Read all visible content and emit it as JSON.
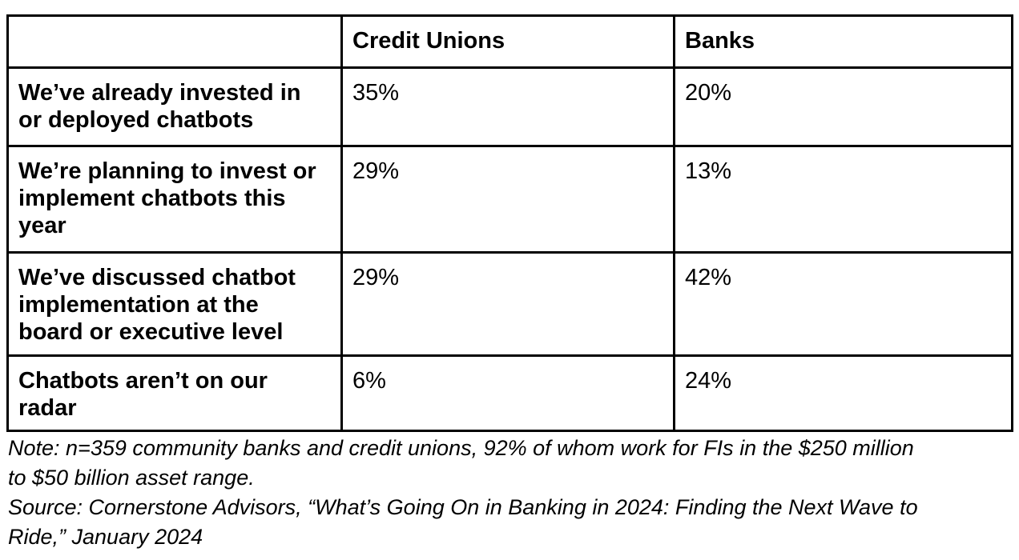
{
  "table": {
    "header": {
      "label": "",
      "credit_unions": "Credit Unions",
      "banks": "Banks"
    },
    "rows": [
      {
        "label": "We’ve already invested in\nor deployed chatbots",
        "credit_unions": "35%",
        "banks": "20%"
      },
      {
        "label": "We’re planning to invest or\nimplement chatbots this\nyear",
        "credit_unions": "29%",
        "banks": "13%"
      },
      {
        "label": "We’ve discussed chatbot\nimplementation at the\nboard or executive level",
        "credit_unions": "29%",
        "banks": "42%"
      },
      {
        "label": "Chatbots aren’t on our\nradar",
        "credit_unions": "6%",
        "banks": "24%"
      }
    ]
  },
  "notes": {
    "note": "Note: n=359 community banks and credit unions, 92% of whom work for FIs in the $250 million\nto $50 billion asset range.",
    "source": "Source: Cornerstone Advisors, “What’s Going On in Banking in 2024: Finding the Next Wave to\nRide,” January 2024"
  },
  "colors": {
    "text": "#000000",
    "border": "#000000",
    "background": "#ffffff"
  },
  "chart_data": {
    "type": "table",
    "title": "",
    "categories": [
      "We’ve already invested in or deployed chatbots",
      "We’re planning to invest or implement chatbots this year",
      "We’ve discussed chatbot implementation at the board or executive level",
      "Chatbots aren’t on our radar"
    ],
    "series": [
      {
        "name": "Credit Unions",
        "values": [
          35,
          29,
          29,
          6
        ]
      },
      {
        "name": "Banks",
        "values": [
          20,
          13,
          42,
          24
        ]
      }
    ],
    "unit": "%",
    "note": "Note: n=359 community banks and credit unions, 92% of whom work for FIs in the $250 million to $50 billion asset range.",
    "source": "Source: Cornerstone Advisors, “What’s Going On in Banking in 2024: Finding the Next Wave to Ride,” January 2024"
  }
}
